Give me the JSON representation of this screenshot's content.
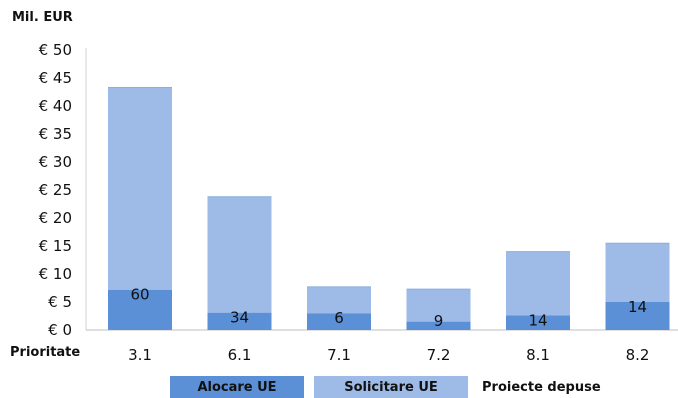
{
  "chart_data": {
    "type": "bar",
    "stacked": true,
    "unit_label": "Mil. EUR",
    "xlabel": "Prioritate",
    "categories": [
      "3.1",
      "6.1",
      "7.1",
      "7.2",
      "8.1",
      "8.2"
    ],
    "series": [
      {
        "name": "Alocare UE",
        "values": [
          7.2,
          3.1,
          3.0,
          1.5,
          2.6,
          5.0
        ],
        "color": "#5b8fd6"
      },
      {
        "name": "Solicitare UE",
        "values": [
          36.1,
          20.7,
          4.7,
          5.8,
          11.4,
          10.5
        ],
        "color": "#9dbbe6"
      }
    ],
    "totals": [
      43.3,
      23.8,
      7.7,
      7.3,
      14.0,
      15.5
    ],
    "project_label_name": "Proiecte depuse",
    "projects": [
      60,
      34,
      6,
      9,
      14,
      14
    ],
    "ylim": [
      0,
      50
    ],
    "y_ticks": [
      0,
      5,
      10,
      15,
      20,
      25,
      30,
      35,
      40,
      45,
      50
    ],
    "y_tick_labels": [
      "€ 0",
      "€ 5",
      "€ 10",
      "€ 15",
      "€ 20",
      "€ 25",
      "€ 30",
      "€ 35",
      "€ 40",
      "€ 45",
      "€ 50"
    ],
    "grid": false,
    "legend_position": "bottom"
  }
}
